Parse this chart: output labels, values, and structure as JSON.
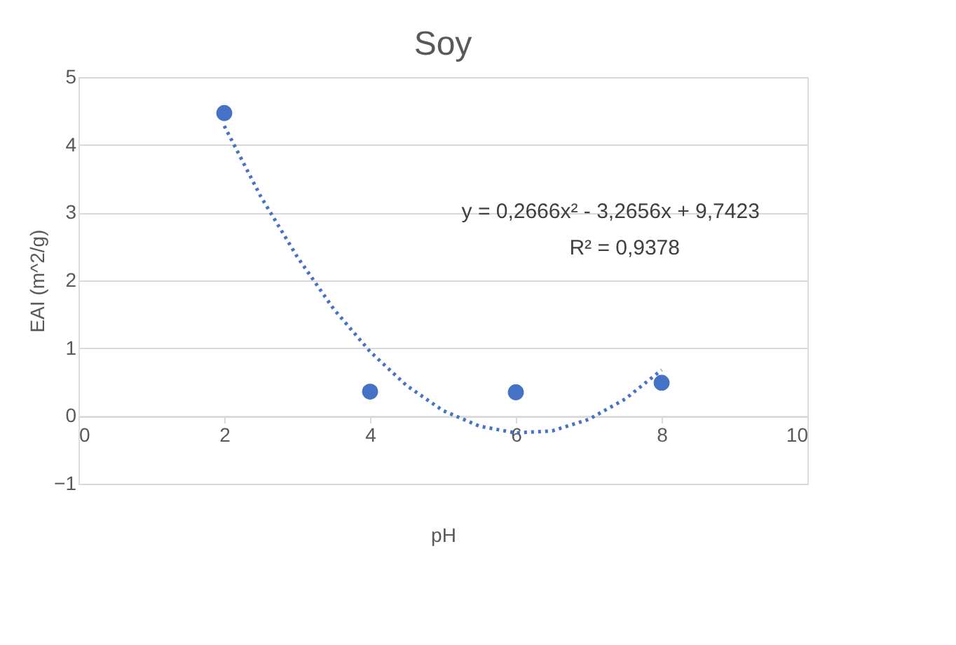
{
  "chart_data": {
    "type": "scatter",
    "title": "Soy",
    "xlabel": "pH",
    "ylabel": "EAI (m^2/g)",
    "xlim": [
      0,
      10
    ],
    "xticks": [
      0,
      2,
      4,
      6,
      8,
      10
    ],
    "ylim": [
      -1,
      5
    ],
    "yticks": [
      -1,
      0,
      1,
      2,
      3,
      4,
      5
    ],
    "grid": "y",
    "legend": false,
    "marker": "circle",
    "series": [
      {
        "color": "#4472c4",
        "x": [
          2,
          4,
          6,
          8
        ],
        "values": [
          4.47,
          0.36,
          0.35,
          0.49
        ]
      },
      {
        "type": "line",
        "line_style": "dotted",
        "marker": "none",
        "color": "#4472c4",
        "x": [
          2,
          2.5,
          3,
          3.5,
          4,
          4.5,
          5,
          5.5,
          6,
          6.5,
          7,
          7.5,
          8
        ],
        "values": [
          4.28,
          3.24,
          2.35,
          1.58,
          0.95,
          0.45,
          0.08,
          -0.15,
          -0.25,
          -0.22,
          -0.05,
          0.25,
          0.68
        ]
      }
    ],
    "annotations": [
      "y = 0,2666x² - 3,2656x + 9,7423",
      "R² = 0,9378"
    ]
  }
}
